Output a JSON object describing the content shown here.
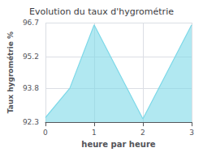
{
  "chart_data": {
    "type": "area",
    "title": "Evolution du taux d'hygrométrie",
    "xlabel": "heure par heure",
    "ylabel": "Taux hygrométrie %",
    "x": [
      0,
      0.5,
      1,
      2,
      3
    ],
    "series": [
      {
        "color": "#7dd8e8",
        "values": [
          92.5,
          93.8,
          96.6,
          92.45,
          96.6
        ]
      }
    ],
    "xlim": [
      0,
      3
    ],
    "ylim": [
      92.3,
      96.7
    ],
    "xticks": [
      0,
      1,
      2,
      3
    ],
    "yticks": [
      92.3,
      93.8,
      95.2,
      96.7
    ],
    "grid": true
  }
}
